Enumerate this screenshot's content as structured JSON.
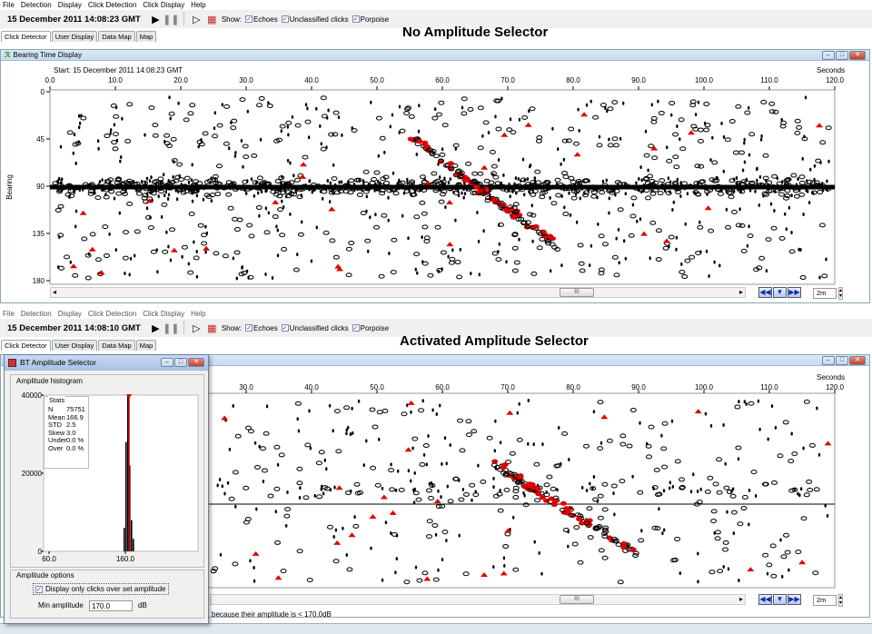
{
  "menu": [
    "File",
    "Detection",
    "Display",
    "Click Detection",
    "Click Display",
    "Help"
  ],
  "top": {
    "timestamp": "15 December 2011 14:08:23 GMT",
    "show_label": "Show:",
    "show_options": [
      "Echoes",
      "Unclassified clicks",
      "Porpoise"
    ],
    "tabs": [
      "Click Detector",
      "User Display",
      "Data Map",
      "Map"
    ],
    "heading": "No Amplitude Selector",
    "window_title": "Bearing Time Display",
    "start_label": "Start: 15 December 2011 14:08:23 GMT",
    "seconds_label": "Seconds",
    "x_ticks": [
      "0.0",
      "10.0",
      "20.0",
      "30.0",
      "40.0",
      "50.0",
      "60.0",
      "70.0",
      "80.0",
      "90.0",
      "100.0",
      "110.0",
      "120.0"
    ],
    "y_label": "Bearing",
    "y_ticks": [
      "0",
      "45",
      "90",
      "135",
      "180"
    ],
    "scroll_thumb": "III",
    "span": "2m"
  },
  "bottom": {
    "timestamp": "15 December 2011 14:08:10 GMT",
    "show_label": "Show:",
    "show_options": [
      "Echoes",
      "Unclassified clicks",
      "Porpoise"
    ],
    "tabs": [
      "Click Detector",
      "User Display",
      "Data Map",
      "Map"
    ],
    "heading": "Activated Amplitude Selector",
    "seconds_label": "Seconds",
    "x_ticks": [
      "30.0",
      "40.0",
      "50.0",
      "60.0",
      "70.0",
      "80.0",
      "90.0",
      "100.0",
      "110.0",
      "120.0"
    ],
    "status_text": "because their amplitude is < 170.0dB",
    "scroll_thumb": "III",
    "span": "2m"
  },
  "dialog": {
    "title": "BT Amplitude Selector",
    "histogram_label": "Amplitude histogram",
    "y_ticks": [
      "40000",
      "20000",
      "0"
    ],
    "x_ticks": [
      "60.0",
      "160.0"
    ],
    "stats_title": "Stats",
    "stats": [
      {
        "k": "N",
        "v": "75751"
      },
      {
        "k": "Mean",
        "v": "166.9"
      },
      {
        "k": "STD",
        "v": "2.5"
      },
      {
        "k": "Skew",
        "v": "3.0"
      },
      {
        "k": "Under",
        "v": "0.0 %"
      },
      {
        "k": "Over",
        "v": "0.0 %"
      }
    ],
    "options_label": "Amplitude options",
    "checkbox_label": "Display only clicks over set amplitude",
    "min_label": "Min amplitude",
    "min_value": "170.0",
    "unit": "dB"
  },
  "colors": {
    "accent_red": "#e00000",
    "title_blue": "#c8dbf1"
  }
}
